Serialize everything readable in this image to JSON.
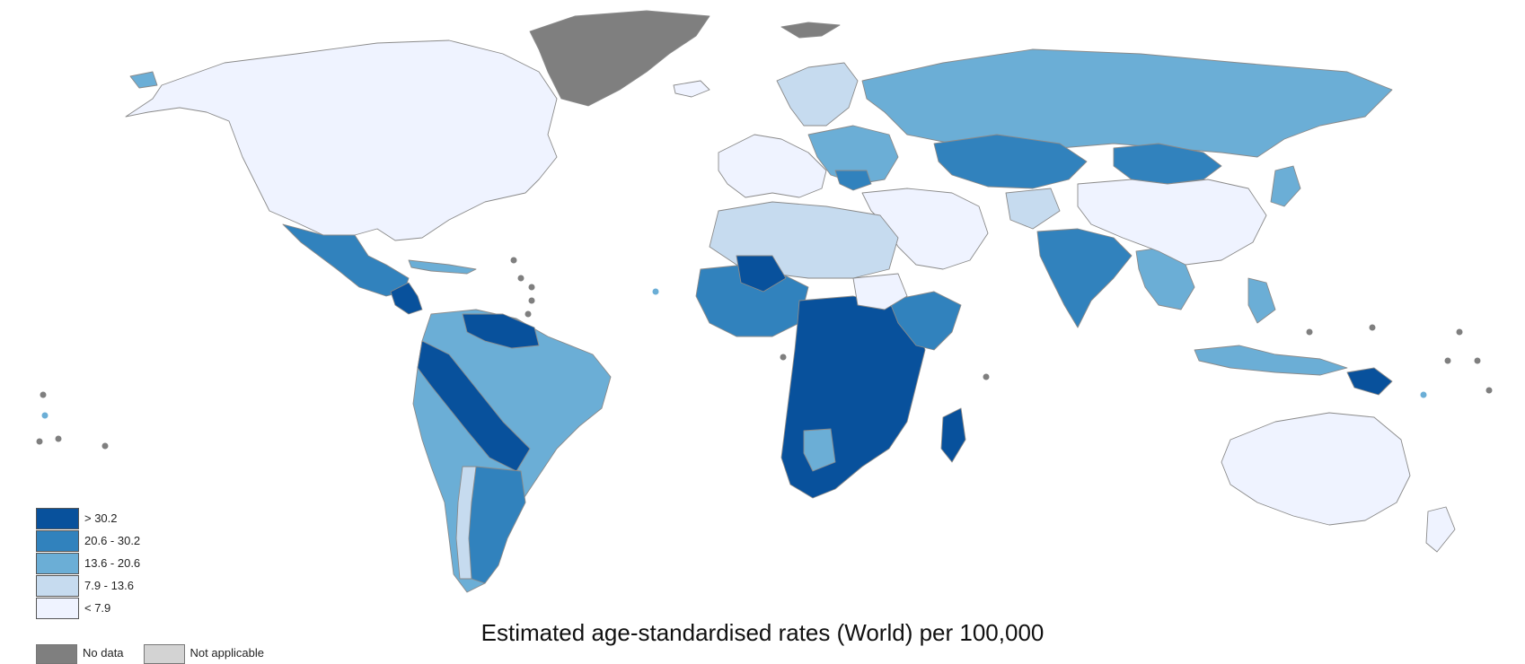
{
  "map": {
    "caption": "Estimated age-standardised rates (World) per 100,000",
    "colors": {
      "class_5": "#08519c",
      "class_4": "#3182bd",
      "class_3": "#6baed6",
      "class_2": "#c6dbef",
      "class_1": "#eff3ff",
      "no_data": "#7f7f7f",
      "not_applicable": "#d3d3d3"
    },
    "legend": [
      {
        "label": "> 30.2",
        "color": "#08519c"
      },
      {
        "label": "20.6  -  30.2",
        "color": "#3182bd"
      },
      {
        "label": "13.6  -  20.6",
        "color": "#6baed6"
      },
      {
        "label": "7.9  -  13.6",
        "color": "#c6dbef"
      },
      {
        "label": "< 7.9",
        "color": "#eff3ff"
      }
    ],
    "extra_legend": [
      {
        "label": "No data",
        "color": "#7f7f7f"
      },
      {
        "label": "Not applicable",
        "color": "#d3d3d3"
      }
    ]
  }
}
